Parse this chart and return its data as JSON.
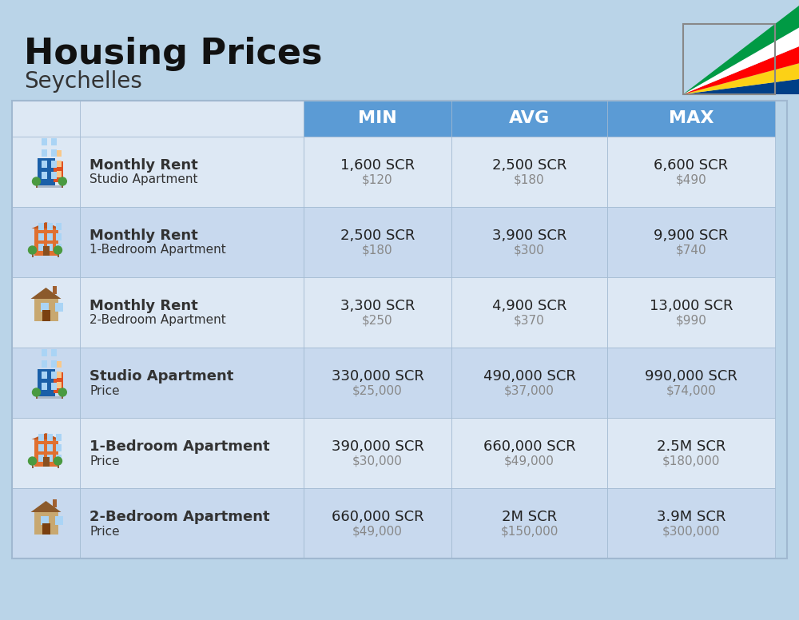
{
  "title": "Housing Prices",
  "subtitle": "Seychelles",
  "background_color": "#bad4e8",
  "header_bg_color": "#5b9bd5",
  "header_text_color": "#ffffff",
  "row_bg_even": "#dde8f4",
  "row_bg_odd": "#c8d9ee",
  "col_header_labels": [
    "MIN",
    "AVG",
    "MAX"
  ],
  "rows": [
    {
      "icon_type": "studio_blue",
      "label_bold": "Monthly Rent",
      "label_sub": "Studio Apartment",
      "min_scr": "1,600 SCR",
      "min_usd": "$120",
      "avg_scr": "2,500 SCR",
      "avg_usd": "$180",
      "max_scr": "6,600 SCR",
      "max_usd": "$490"
    },
    {
      "icon_type": "apt_orange",
      "label_bold": "Monthly Rent",
      "label_sub": "1-Bedroom Apartment",
      "min_scr": "2,500 SCR",
      "min_usd": "$180",
      "avg_scr": "3,900 SCR",
      "avg_usd": "$300",
      "max_scr": "9,900 SCR",
      "max_usd": "$740"
    },
    {
      "icon_type": "apt_tan",
      "label_bold": "Monthly Rent",
      "label_sub": "2-Bedroom Apartment",
      "min_scr": "3,300 SCR",
      "min_usd": "$250",
      "avg_scr": "4,900 SCR",
      "avg_usd": "$370",
      "max_scr": "13,000 SCR",
      "max_usd": "$990"
    },
    {
      "icon_type": "studio_blue",
      "label_bold": "Studio Apartment",
      "label_sub": "Price",
      "min_scr": "330,000 SCR",
      "min_usd": "$25,000",
      "avg_scr": "490,000 SCR",
      "avg_usd": "$37,000",
      "max_scr": "990,000 SCR",
      "max_usd": "$74,000"
    },
    {
      "icon_type": "apt_orange",
      "label_bold": "1-Bedroom Apartment",
      "label_sub": "Price",
      "min_scr": "390,000 SCR",
      "min_usd": "$30,000",
      "avg_scr": "660,000 SCR",
      "avg_usd": "$49,000",
      "max_scr": "2.5M SCR",
      "max_usd": "$180,000"
    },
    {
      "icon_type": "apt_brown",
      "label_bold": "2-Bedroom Apartment",
      "label_sub": "Price",
      "min_scr": "660,000 SCR",
      "min_usd": "$49,000",
      "avg_scr": "2M SCR",
      "avg_usd": "$150,000",
      "max_scr": "3.9M SCR",
      "max_usd": "$300,000"
    }
  ],
  "divider_color": "#a0b8d0",
  "usd_text_color": "#888888",
  "label_text_color": "#333333",
  "scr_text_color": "#222222"
}
